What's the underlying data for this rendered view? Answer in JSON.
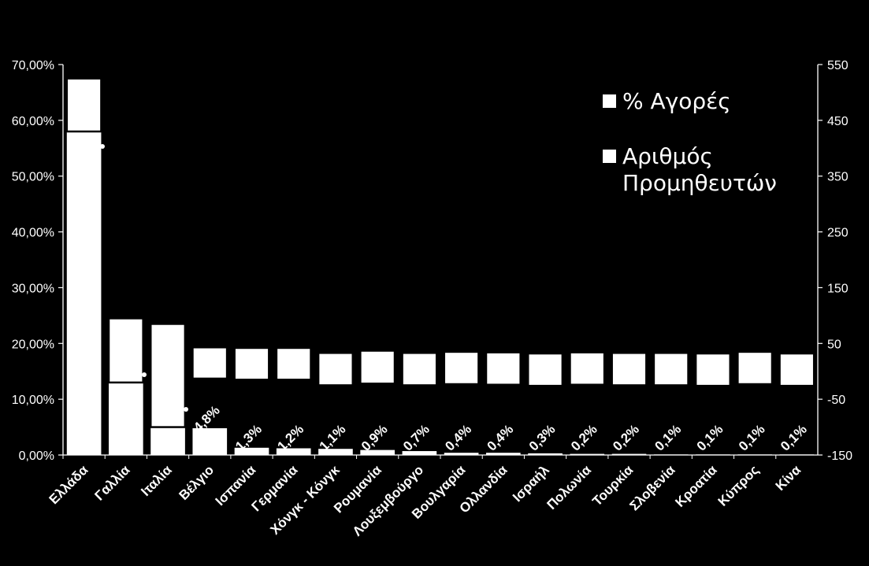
{
  "chart_data": {
    "type": "bar",
    "title": "",
    "categories": [
      "Ελλάδα",
      "Γαλλία",
      "Ιταλία",
      "Βέλγιο",
      "Ισπανία",
      "Γερμανία",
      "Χόνγκ - Κόνγκ",
      "Ρουμανία",
      "Λουξεμβούργο",
      "Βουλγαρία",
      "Ολλανδία",
      "Ισραήλ",
      "Πολωνία",
      "Τουρκία",
      "Σλοβενία",
      "Κροατία",
      "Κύπρος",
      "Κίνα"
    ],
    "series": [
      {
        "name": "% Αγορές",
        "axis": "left",
        "values": [
          59.3,
          18.2,
          10.5,
          4.8,
          1.3,
          1.2,
          1.1,
          0.9,
          0.7,
          0.4,
          0.4,
          0.3,
          0.2,
          0.2,
          0.1,
          0.1,
          0.1,
          0.1
        ],
        "data_labels": [
          "",
          "",
          "",
          "4,8%",
          "1,3%",
          "1,2%",
          "1,1%",
          "0,9%",
          "0,7%",
          "0,4%",
          "0,4%",
          "0,3%",
          "0,2%",
          "0,2%",
          "0,1%",
          "0,1%",
          "0,1%",
          "0,1%"
        ]
      },
      {
        "name": "Αριθμός Προμηθευτών",
        "axis": "right",
        "values": [
          525,
          95,
          85,
          43,
          42,
          42,
          33,
          37,
          33,
          35,
          34,
          32,
          34,
          33,
          33,
          32,
          35,
          32
        ],
        "ranges": [
          [
            430,
            525
          ],
          [
            -20,
            95
          ],
          [
            -100,
            85
          ],
          [
            -13,
            43
          ],
          [
            -15,
            42
          ],
          [
            -15,
            42
          ],
          [
            -25,
            33
          ],
          [
            -22,
            37
          ],
          [
            -25,
            33
          ],
          [
            -23,
            35
          ],
          [
            -24,
            34
          ],
          [
            -26,
            32
          ],
          [
            -24,
            34
          ],
          [
            -25,
            33
          ],
          [
            -25,
            33
          ],
          [
            -26,
            32
          ],
          [
            -23,
            35
          ],
          [
            -26,
            32
          ]
        ]
      }
    ],
    "left_axis": {
      "ylim": [
        0,
        70
      ],
      "ticks": [
        "0,00%",
        "10,00%",
        "20,00%",
        "30,00%",
        "40,00%",
        "50,00%",
        "60,00%",
        "70,00%"
      ]
    },
    "right_axis": {
      "ylim": [
        -150,
        550
      ],
      "ticks": [
        "-150",
        "-50",
        "50",
        "150",
        "250",
        "350",
        "450",
        "550"
      ]
    },
    "legend_position": "top-right"
  },
  "legend": {
    "items": [
      {
        "label": "% Αγορές",
        "lines": [
          "% Αγορές"
        ]
      },
      {
        "label": "Αριθμός Προμηθευτών",
        "lines": [
          "Αριθμός",
          "Προμηθευτών"
        ]
      }
    ]
  }
}
